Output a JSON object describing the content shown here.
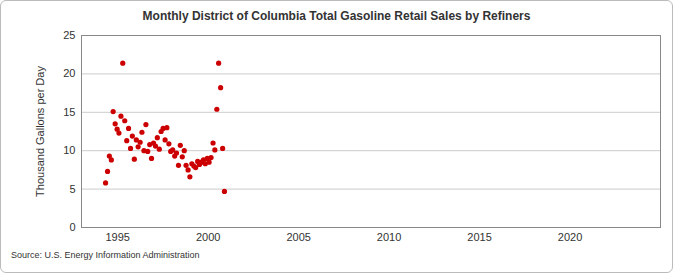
{
  "chart_data": {
    "type": "scatter",
    "title": "Monthly District of Columbia Total Gasoline Retail Sales by Refiners",
    "y_label": "Thousand Gallons per Day",
    "caption": "Source: U.S. Energy Information Administration",
    "x": [
      1994.33,
      1994.44,
      1994.54,
      1994.65,
      1994.75,
      1994.86,
      1994.97,
      1995.07,
      1995.18,
      1995.28,
      1995.39,
      1995.5,
      1995.6,
      1995.71,
      1995.81,
      1995.92,
      1996.03,
      1996.13,
      1996.24,
      1996.34,
      1996.45,
      1996.56,
      1996.66,
      1996.77,
      1996.87,
      1996.98,
      1997.09,
      1997.19,
      1997.3,
      1997.4,
      1997.51,
      1997.62,
      1997.72,
      1997.83,
      1997.93,
      1998.04,
      1998.15,
      1998.25,
      1998.36,
      1998.46,
      1998.57,
      1998.68,
      1998.78,
      1998.89,
      1998.99,
      1999.1,
      1999.21,
      1999.31,
      1999.42,
      1999.52,
      1999.63,
      1999.74,
      1999.84,
      1999.95,
      2000.05,
      2000.16,
      2000.27,
      2000.37,
      2000.48,
      2000.58,
      2000.69,
      2000.8,
      2000.9
    ],
    "values": [
      5.8,
      7.3,
      9.3,
      8.8,
      15.1,
      13.5,
      12.8,
      12.3,
      14.5,
      21.4,
      13.9,
      11.3,
      12.9,
      10.3,
      11.9,
      8.9,
      11.4,
      10.5,
      11.1,
      12.4,
      10.0,
      13.4,
      9.9,
      10.8,
      9.0,
      11.0,
      10.6,
      11.7,
      10.2,
      12.5,
      12.9,
      11.4,
      13.0,
      10.9,
      9.9,
      10.1,
      9.3,
      9.7,
      8.1,
      10.7,
      9.2,
      10.0,
      8.1,
      7.5,
      6.6,
      8.3,
      8.0,
      7.8,
      8.6,
      8.2,
      8.5,
      8.8,
      8.3,
      9.0,
      8.5,
      9.1,
      11.0,
      10.1,
      15.4,
      21.4,
      18.2,
      10.3,
      4.7
    ],
    "color": "#cc0000",
    "marker": "circle",
    "xlim": [
      1993,
      2025
    ],
    "xticks": [
      1995,
      2000,
      2005,
      2010,
      2015,
      2020
    ],
    "ylim": [
      0,
      25
    ],
    "yticks": [
      0,
      5,
      10,
      15,
      20,
      25
    ],
    "grid": true
  }
}
